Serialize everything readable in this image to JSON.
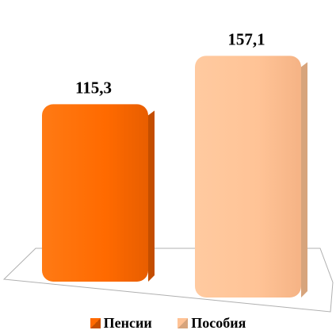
{
  "chart_data": {
    "type": "bar",
    "categories": [
      "Пенсии",
      "Пособия"
    ],
    "values": [
      115.3,
      157.1
    ],
    "value_labels": [
      "115,3",
      "157,1"
    ],
    "colors": [
      "#ff6a00",
      "#ffc396"
    ],
    "side_colors": [
      "#c44e00",
      "#d7a47c"
    ],
    "ylim": [
      0,
      165
    ],
    "grid": false,
    "legend": "bottom"
  }
}
